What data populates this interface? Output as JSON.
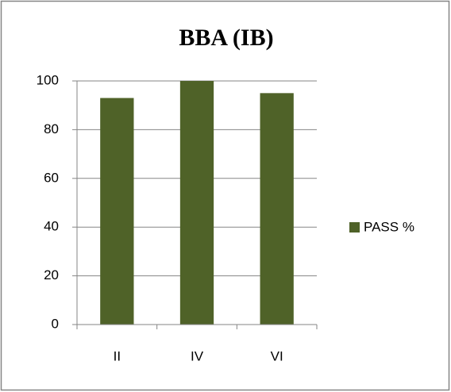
{
  "chart_data": {
    "type": "bar",
    "title": "BBA (IB)",
    "categories": [
      "II",
      "IV",
      "VI"
    ],
    "series": [
      {
        "name": "PASS %",
        "color": "#4f6228",
        "values": [
          93,
          100,
          95
        ]
      }
    ],
    "ylim": [
      0,
      100
    ],
    "yticks": [
      0,
      20,
      40,
      60,
      80,
      100
    ],
    "grid": true,
    "legend": "right"
  }
}
